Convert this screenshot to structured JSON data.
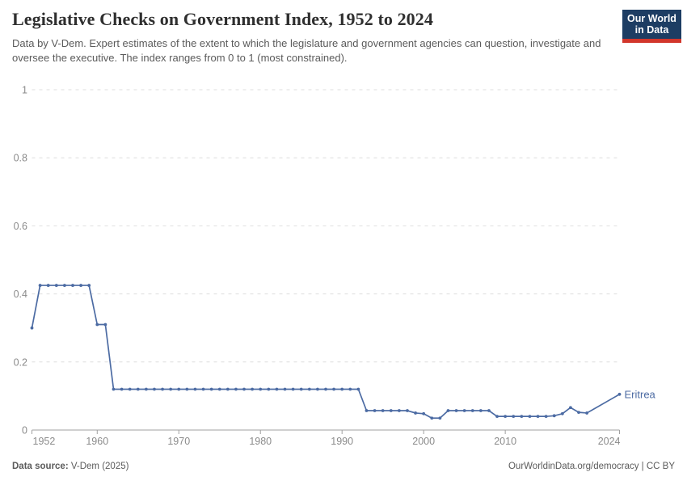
{
  "header": {
    "title": "Legislative Checks on Government Index, 1952 to 2024",
    "subtitle": "Data by V-Dem. Expert estimates of the extent to which the legislature and government agencies can question, investigate and oversee the executive. The index ranges from 0 to 1 (most constrained)."
  },
  "logo": {
    "line1": "Our World",
    "line2": "in Data",
    "bg_color": "#1d3d63",
    "bar_color": "#d2362b"
  },
  "footer": {
    "source_label": "Data source:",
    "source_value": " V-Dem (2025)",
    "credit": "OurWorldinData.org/democracy | CC BY"
  },
  "chart_data": {
    "type": "line",
    "title": "Legislative Checks on Government Index, 1952 to 2024",
    "xlabel": "",
    "ylabel": "",
    "xlim": [
      1952,
      2024
    ],
    "ylim": [
      0,
      1
    ],
    "yticks": [
      0,
      0.2,
      0.4,
      0.6,
      0.8,
      1
    ],
    "ytick_labels": [
      "0",
      "0.2",
      "0.4",
      "0.6",
      "0.8",
      "1"
    ],
    "xticks": [
      1952,
      1960,
      1970,
      1980,
      1990,
      2000,
      2010,
      2024
    ],
    "grid": "horizontal-dashed",
    "grid_color": "#dedede",
    "axis_color": "#a0a0a0",
    "tick_label_color": "#8b8b8b",
    "legend": "end-of-line-label",
    "series": [
      {
        "name": "Eritrea",
        "color": "#4c6ba3",
        "points": [
          [
            1952,
            0.3
          ],
          [
            1953,
            0.425
          ],
          [
            1954,
            0.425
          ],
          [
            1955,
            0.425
          ],
          [
            1956,
            0.425
          ],
          [
            1957,
            0.425
          ],
          [
            1958,
            0.425
          ],
          [
            1959,
            0.425
          ],
          [
            1960,
            0.31
          ],
          [
            1961,
            0.31
          ],
          [
            1962,
            0.12
          ],
          [
            1963,
            0.12
          ],
          [
            1964,
            0.12
          ],
          [
            1965,
            0.12
          ],
          [
            1966,
            0.12
          ],
          [
            1967,
            0.12
          ],
          [
            1968,
            0.12
          ],
          [
            1969,
            0.12
          ],
          [
            1970,
            0.12
          ],
          [
            1971,
            0.12
          ],
          [
            1972,
            0.12
          ],
          [
            1973,
            0.12
          ],
          [
            1974,
            0.12
          ],
          [
            1975,
            0.12
          ],
          [
            1976,
            0.12
          ],
          [
            1977,
            0.12
          ],
          [
            1978,
            0.12
          ],
          [
            1979,
            0.12
          ],
          [
            1980,
            0.12
          ],
          [
            1981,
            0.12
          ],
          [
            1982,
            0.12
          ],
          [
            1983,
            0.12
          ],
          [
            1984,
            0.12
          ],
          [
            1985,
            0.12
          ],
          [
            1986,
            0.12
          ],
          [
            1987,
            0.12
          ],
          [
            1988,
            0.12
          ],
          [
            1989,
            0.12
          ],
          [
            1990,
            0.12
          ],
          [
            1991,
            0.12
          ],
          [
            1992,
            0.12
          ],
          [
            1993,
            0.057
          ],
          [
            1994,
            0.057
          ],
          [
            1995,
            0.057
          ],
          [
            1996,
            0.057
          ],
          [
            1997,
            0.057
          ],
          [
            1998,
            0.057
          ],
          [
            1999,
            0.05
          ],
          [
            2000,
            0.048
          ],
          [
            2001,
            0.035
          ],
          [
            2002,
            0.035
          ],
          [
            2003,
            0.057
          ],
          [
            2004,
            0.057
          ],
          [
            2005,
            0.057
          ],
          [
            2006,
            0.057
          ],
          [
            2007,
            0.057
          ],
          [
            2008,
            0.057
          ],
          [
            2009,
            0.04
          ],
          [
            2010,
            0.04
          ],
          [
            2011,
            0.04
          ],
          [
            2012,
            0.04
          ],
          [
            2013,
            0.04
          ],
          [
            2014,
            0.04
          ],
          [
            2015,
            0.04
          ],
          [
            2016,
            0.042
          ],
          [
            2017,
            0.048
          ],
          [
            2018,
            0.066
          ],
          [
            2019,
            0.052
          ],
          [
            2020,
            0.05
          ],
          [
            2024,
            0.105
          ]
        ]
      }
    ]
  }
}
